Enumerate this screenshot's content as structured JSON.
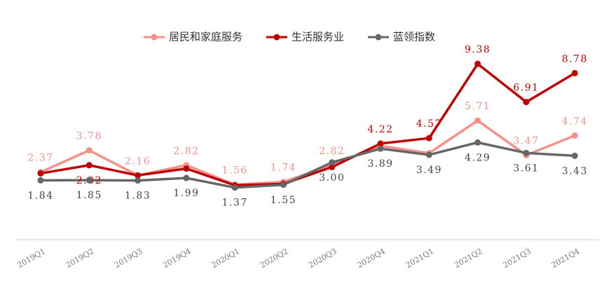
{
  "chart_data": {
    "type": "line",
    "categories": [
      "2019Q1",
      "2019Q2",
      "2019Q3",
      "2019Q4",
      "2020Q1",
      "2020Q2",
      "2020Q3",
      "2020Q4",
      "2021Q1",
      "2021Q2",
      "2021Q3",
      "2021Q4"
    ],
    "series": [
      {
        "name": "居民和家庭服务",
        "color": "#f4918a",
        "values": [
          2.37,
          3.78,
          2.16,
          2.82,
          1.56,
          1.74,
          2.82,
          4.07,
          3.6,
          5.71,
          3.47,
          4.74
        ],
        "value_labels": [
          "2.37",
          "3.78",
          "2.16",
          "2.82",
          "1.56",
          "1.74",
          "2.82",
          null,
          null,
          "5.71",
          "3.47",
          "4.74"
        ]
      },
      {
        "name": "生活服务业",
        "color": "#c00000",
        "values": [
          2.29,
          2.82,
          2.16,
          2.6,
          1.52,
          1.61,
          2.7,
          4.22,
          4.57,
          9.38,
          6.91,
          8.78
        ],
        "value_labels": [
          null,
          "2.82",
          null,
          null,
          null,
          null,
          null,
          "4.22",
          "4.57",
          "9.38",
          "6.91",
          "8.78"
        ]
      },
      {
        "name": "蓝领指数",
        "color": "#666666",
        "values": [
          1.84,
          1.85,
          1.83,
          1.99,
          1.37,
          1.55,
          3.0,
          3.89,
          3.49,
          4.29,
          3.61,
          3.43
        ],
        "value_labels": [
          "1.84",
          "1.85",
          "1.83",
          "1.99",
          "1.37",
          "1.55",
          "3.00",
          "3.89",
          "3.49",
          "4.29",
          "3.61",
          "3.43"
        ]
      }
    ],
    "ylim": [
      -2,
      10
    ],
    "legend": "top"
  }
}
